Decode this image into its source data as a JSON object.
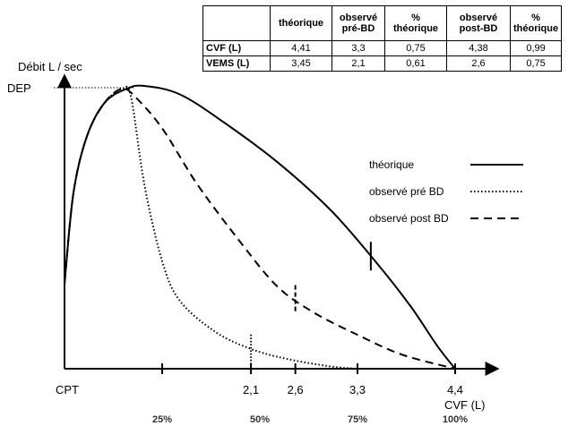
{
  "table": {
    "headers": [
      "",
      "théorique",
      "observé pré-BD",
      "% théorique",
      "observé post-BD",
      "% théorique"
    ],
    "rows": [
      {
        "label": "CVF (L)",
        "cells": [
          "4,41",
          "3,3",
          "0,75",
          "4,38",
          "0,99"
        ]
      },
      {
        "label": "VEMS (L)",
        "cells": [
          "3,45",
          "2,1",
          "0,61",
          "2,6",
          "0,75"
        ]
      }
    ]
  },
  "chart_data": {
    "type": "line",
    "ylabel": "Débit L / sec",
    "xlabel": "CVF (L)",
    "y_top_label": "DEP",
    "origin_label": "CPT",
    "xlim": [
      0,
      4.4
    ],
    "x_ticks": [
      {
        "value": 1.1,
        "label": ""
      },
      {
        "value": 2.1,
        "label": "2,1"
      },
      {
        "value": 2.6,
        "label": "2,6"
      },
      {
        "value": 3.3,
        "label": "3,3"
      },
      {
        "value": 4.4,
        "label": "4,4"
      }
    ],
    "percent_ticks": [
      {
        "value": 1.1,
        "label": "25%"
      },
      {
        "value": 2.2,
        "label": "50%"
      },
      {
        "value": 3.3,
        "label": "75%"
      },
      {
        "value": 4.4,
        "label": "100%"
      }
    ],
    "legend": [
      {
        "name": "théorique",
        "style": "solid"
      },
      {
        "name": "observé pré BD",
        "style": "dotted"
      },
      {
        "name": "observé post BD",
        "style": "dashed"
      }
    ],
    "series": [
      {
        "name": "théorique",
        "style": "solid",
        "x": [
          0,
          0.1,
          0.25,
          0.45,
          0.7,
          0.9,
          1.3,
          1.8,
          2.4,
          3.0,
          3.5,
          3.9,
          4.2,
          4.4
        ],
        "y": [
          0.3,
          0.62,
          0.82,
          0.94,
          0.99,
          1.0,
          0.97,
          0.87,
          0.73,
          0.56,
          0.38,
          0.22,
          0.08,
          0
        ]
      },
      {
        "name": "observé pré BD",
        "style": "dotted",
        "x": [
          0,
          0.1,
          0.25,
          0.45,
          0.65,
          0.75,
          0.9,
          1.1,
          1.3,
          1.7,
          2.1,
          2.5,
          3.0,
          3.3
        ],
        "y": [
          0.3,
          0.62,
          0.82,
          0.94,
          0.99,
          0.96,
          0.65,
          0.38,
          0.24,
          0.13,
          0.07,
          0.035,
          0.008,
          0
        ]
      },
      {
        "name": "observé post BD",
        "style": "dashed",
        "x": [
          0,
          0.1,
          0.25,
          0.45,
          0.65,
          0.8,
          1.1,
          1.5,
          2.0,
          2.4,
          2.8,
          3.3,
          3.8,
          4.4
        ],
        "y": [
          0.3,
          0.62,
          0.82,
          0.94,
          0.99,
          0.96,
          0.85,
          0.65,
          0.44,
          0.29,
          0.2,
          0.12,
          0.05,
          0
        ]
      }
    ],
    "markers": [
      {
        "series": "théorique",
        "x": 3.45
      },
      {
        "series": "observé post BD",
        "x": 2.6
      },
      {
        "series": "observé pré BD",
        "x": 2.1
      }
    ]
  }
}
